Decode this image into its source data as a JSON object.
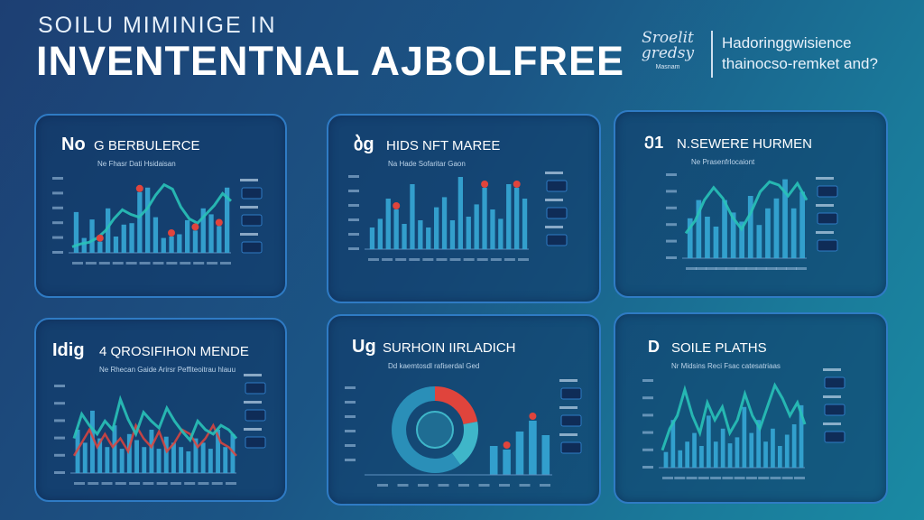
{
  "header": {
    "kicker": "SOILU MIMINIGE IN",
    "title": "INVENTENTNAL AJBOLFREE",
    "brand_line1": "Sroelit",
    "brand_line2": "gredsy",
    "brand_small": "Masnam",
    "tagline_1": "Hadoringgwisience",
    "tagline_2": "thainocso-remket and?"
  },
  "colors": {
    "background": "#1b5585",
    "panel_border": "#2f7bc4",
    "bar": "#36a9d6",
    "line_teal": "#29c2b8",
    "accent_red": "#e0443c"
  },
  "chart_data": [
    {
      "type": "bar",
      "title": "G BERBULERCE",
      "title_prefix": "No",
      "subtitle": "Ne Fhasr Dati Hsidaisan",
      "values": [
        55,
        20,
        45,
        15,
        60,
        22,
        38,
        40,
        82,
        88,
        48,
        20,
        22,
        25,
        44,
        30,
        60,
        52,
        36,
        88
      ],
      "line_values": [
        8,
        12,
        14,
        20,
        30,
        46,
        58,
        52,
        48,
        60,
        78,
        92,
        86,
        62,
        46,
        40,
        52,
        64,
        80,
        70
      ],
      "markers": [
        3,
        8,
        12,
        15,
        18
      ]
    },
    {
      "type": "bar",
      "title": "HIDS NFT MAREE",
      "title_prefix": "ბg",
      "subtitle": "Na Hade Sofaritar Gaon",
      "values": [
        30,
        42,
        70,
        55,
        35,
        90,
        40,
        30,
        58,
        72,
        40,
        100,
        45,
        62,
        85,
        55,
        42,
        90,
        85,
        70
      ],
      "markers": [
        3,
        14,
        18
      ]
    },
    {
      "type": "bar",
      "title": "N.SEWERE HURMEN",
      "title_prefix": "Ე1",
      "subtitle": "Ne Prasenfrlocaiont",
      "values": [
        48,
        70,
        50,
        38,
        70,
        55,
        44,
        75,
        40,
        60,
        72,
        95,
        60,
        80
      ],
      "line_values": [
        30,
        45,
        70,
        85,
        72,
        50,
        35,
        55,
        80,
        92,
        88,
        75,
        90,
        70
      ]
    },
    {
      "type": "bar",
      "title": "4 QROSIFIHON MENDE",
      "title_prefix": "Idig",
      "subtitle": "Ne Rhecan Gaide Arirsr Peffiteoitrau hlauu",
      "values": [
        50,
        35,
        72,
        40,
        30,
        55,
        28,
        45,
        38,
        30,
        50,
        28,
        42,
        35,
        30,
        25,
        40,
        35,
        28,
        50,
        30,
        45
      ],
      "line_values": [
        40,
        68,
        55,
        45,
        60,
        50,
        85,
        62,
        45,
        70,
        60,
        52,
        75,
        60,
        48,
        38,
        60,
        50,
        45,
        55,
        50,
        40
      ],
      "red_values": [
        20,
        35,
        50,
        30,
        45,
        30,
        40,
        25,
        55,
        40,
        30,
        48,
        25,
        35,
        50,
        45,
        30,
        40,
        55,
        35,
        30,
        20
      ]
    },
    {
      "type": "donut",
      "title": "SURHOIN IIRLADICH",
      "title_prefix": "Ug",
      "subtitle": "Dd kaemtosdl rafiserdal Ged",
      "slices": [
        0.22,
        0.18,
        0.6
      ],
      "values": [
        40,
        35,
        60,
        75,
        55
      ]
    },
    {
      "type": "bar",
      "title": "SOILE PLATHS",
      "title_prefix": "D",
      "subtitle": "Nr Midsins Reci Fsac catesatriaas",
      "values": [
        18,
        55,
        20,
        30,
        40,
        25,
        60,
        30,
        45,
        28,
        35,
        70,
        40,
        55,
        30,
        45,
        25,
        38,
        50,
        72
      ],
      "line_values": [
        20,
        45,
        60,
        90,
        60,
        40,
        75,
        55,
        70,
        40,
        55,
        85,
        60,
        45,
        70,
        95,
        80,
        60,
        75,
        50
      ]
    }
  ]
}
